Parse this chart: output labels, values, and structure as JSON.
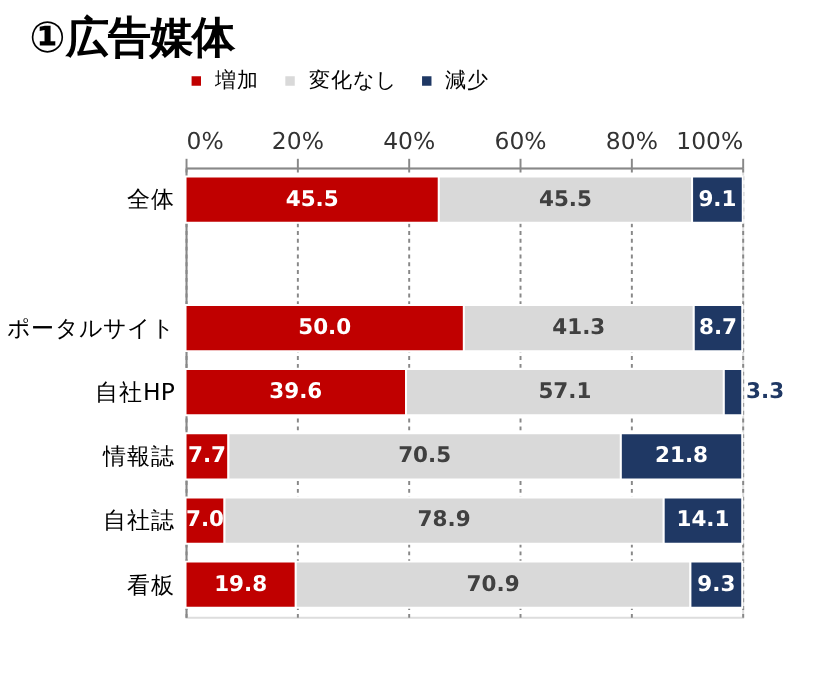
{
  "chart_data": {
    "type": "bar",
    "orientation": "horizontal",
    "stacked": true,
    "title": "①広告媒体",
    "categories": [
      "全体",
      null,
      "ポータルサイト",
      "自社HP",
      "情報誌",
      "自社誌",
      "看板"
    ],
    "series": [
      {
        "name": "増加",
        "color": "#c00000",
        "values": [
          45.5,
          null,
          50.0,
          39.6,
          7.7,
          7.0,
          19.8
        ],
        "value_labels": [
          "45.5",
          null,
          "50.0",
          "39.6",
          "7.7",
          "7.0",
          "19.8"
        ]
      },
      {
        "name": "変化なし",
        "color": "#d9d9d9",
        "values": [
          45.5,
          null,
          41.3,
          57.1,
          70.5,
          78.9,
          70.9
        ],
        "value_labels": [
          "45.5",
          null,
          "41.3",
          "57.1",
          "70.5",
          "78.9",
          "70.9"
        ]
      },
      {
        "name": "減少",
        "color": "#1f3864",
        "values": [
          9.1,
          null,
          8.7,
          3.3,
          21.8,
          14.1,
          9.3
        ],
        "value_labels": [
          "9.1",
          null,
          "8.7",
          "3.3",
          "21.8",
          "14.1",
          "9.3"
        ]
      }
    ],
    "xlim": [
      0,
      100
    ],
    "xticks": [
      {
        "value": 0,
        "label": "0%"
      },
      {
        "value": 20,
        "label": "20%"
      },
      {
        "value": 40,
        "label": "40%"
      },
      {
        "value": 60,
        "label": "60%"
      },
      {
        "value": 80,
        "label": "80%"
      },
      {
        "value": 100,
        "label": "100%"
      }
    ],
    "grid": "x",
    "legend": "top"
  }
}
